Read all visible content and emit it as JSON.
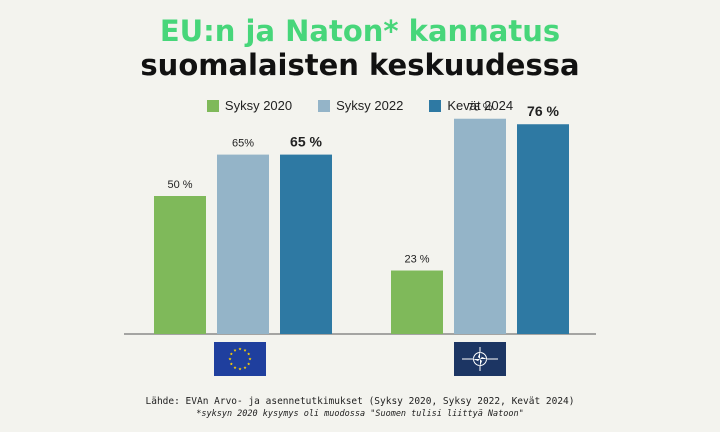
{
  "title_line1": "EU:n ja Naton* kannatus",
  "title_line2": "suomalaisten keskuudessa",
  "colors": {
    "title_accent": "#47d67a",
    "syksy2020": "#7fb95a",
    "syksy2022": "#94b4c8",
    "kevat2024": "#2e79a3",
    "eu_flag": "#1f3f9e",
    "nato_flag": "#1c3563"
  },
  "chart_data": {
    "type": "bar",
    "categories": [
      "EU",
      "Nato"
    ],
    "series": [
      {
        "name": "Syksy 2020",
        "values": [
          50,
          23
        ],
        "labels": [
          "50 %",
          "23 %"
        ]
      },
      {
        "name": "Syksy 2022",
        "values": [
          65,
          78
        ],
        "labels": [
          "65%",
          "78 %"
        ]
      },
      {
        "name": "Kevät 2024",
        "values": [
          65,
          76
        ],
        "labels": [
          "65 %",
          "76 %"
        ]
      }
    ],
    "ylim": [
      0,
      100
    ],
    "legend_position": "top-center",
    "category_icons": [
      "eu-flag-icon",
      "nato-flag-icon"
    ]
  },
  "source": "Lähde: EVAn Arvo- ja asennetutkimukset (Syksy 2020, Syksy 2022, Kevät 2024)",
  "footnote": "*syksyn 2020 kysymys oli muodossa \"Suomen tulisi liittyä Natoon\""
}
